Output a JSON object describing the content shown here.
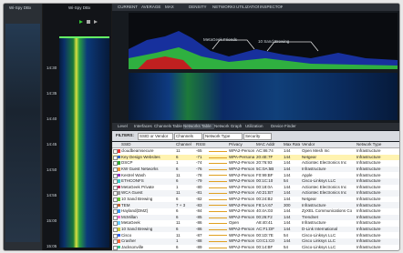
{
  "sidebar": {
    "title": "Wi-Spy DBx"
  },
  "waterfall_panel": {
    "title": "Wi-Spy DBx",
    "time_labels": [
      "14:30",
      "14:35",
      "14:40",
      "14:45",
      "14:50",
      "14:55",
      "15:00",
      "15:05"
    ]
  },
  "toolbar": {
    "items": [
      "CURRENT",
      "AVERAGE",
      "MAX",
      "DENSITY",
      "NETWORKS",
      "UTILIZATION",
      "INSPECTOR"
    ]
  },
  "spectrum": {
    "annotations": [
      "MetaGeek Friends",
      "10 Sand Brewing"
    ]
  },
  "tabs": [
    "Level",
    "Interfaces",
    "Channels Table",
    "Networks Table",
    "Network Graph",
    "Utilization",
    "Device Finder"
  ],
  "filters": {
    "label": "FILTERS:",
    "fields": [
      "SSID or Vendor",
      "Channels",
      "Network Type",
      "Security"
    ]
  },
  "table": {
    "columns": [
      "SSID",
      "Channel",
      "RSSI",
      "Privacy",
      "MAC Addr",
      "Max Rate",
      "Vendor",
      "Network Type"
    ],
    "rows": [
      [
        "cloudbeamsecure",
        "11",
        "-65",
        "WPA2-Personal",
        "AC:86:74",
        "144",
        "Open Mesh Inc",
        "Infrastructure"
      ],
      [
        "Key Design Websites",
        "6",
        "-71",
        "WPA-Personal",
        "20:4E:7F",
        "144",
        "Netgear",
        "Infrastructure"
      ],
      [
        "DSCP",
        "1",
        "-74",
        "WPA2-Personal",
        "20:76:93",
        "144",
        "Actiontec Electronics Inc",
        "Infrastructure"
      ],
      [
        "KW Guest Networks",
        "6",
        "-76",
        "WPA2-Personal",
        "5C:0A:5B",
        "144",
        "Infrastructure",
        "Infrastructure"
      ],
      [
        "Kestrel Wash",
        "11",
        "-78",
        "WPA2-Personal",
        "F0:99:BF",
        "144",
        "Apple",
        "Infrastructure"
      ],
      [
        "ETHCONFS",
        "6",
        "-79",
        "WPA2-Personal",
        "00:1C:10",
        "54",
        "Cisco-Linksys LLC",
        "Infrastructure"
      ],
      [
        "MetaGeek Private",
        "1",
        "-80",
        "WPA2-Personal",
        "00:18:0A",
        "144",
        "Actiontec Electronics Inc",
        "Infrastructure"
      ],
      [
        "WCA Guest",
        "11",
        "-81",
        "WPA2-Personal",
        "A0:21:B7",
        "144",
        "Actiontec Electronics Inc",
        "Infrastructure"
      ],
      [
        "10 Sand Brewing",
        "6",
        "-82",
        "WPA2-Personal",
        "00:24:B2",
        "144",
        "Netgear",
        "Infrastructure"
      ],
      [
        "TEM",
        "7 + 3",
        "-83",
        "WPA2-Personal",
        "F8:1A:67",
        "300",
        "Infrastructure",
        "Infrastructure"
      ],
      [
        "Hayland(DMZ)",
        "6",
        "-84",
        "WPA2-Personal",
        "40:4A:03",
        "144",
        "ZyXEL Communications Co",
        "Infrastructure"
      ],
      [
        "McMillan",
        "6",
        "-85",
        "WPA2-Personal",
        "00:26:F2",
        "144",
        "Trendnet",
        "Infrastructure"
      ],
      [
        "MetaGeek",
        "11",
        "-86",
        "Open",
        "A8:40:41",
        "144",
        "Infrastructure",
        "Infrastructure"
      ],
      [
        "10 Sand Brewing",
        "6",
        "-86",
        "WPA2-Personal",
        "AC:F1:DF",
        "144",
        "D-Link International",
        "Infrastructure"
      ],
      [
        "Cisco",
        "11",
        "-87",
        "WPA2-Personal",
        "00:1D:7E",
        "54",
        "Cisco-Linksys LLC",
        "Infrastructure"
      ],
      [
        "Crasher",
        "1",
        "-88",
        "WPA2-Personal",
        "C0:C1:C0",
        "144",
        "Cisco Linksys LLC",
        "Infrastructure"
      ],
      [
        "Jacksonville",
        "6",
        "-89",
        "WPA2-Personal",
        "00:14:BF",
        "54",
        "Cisco-Linksys LLC",
        "Infrastructure"
      ]
    ]
  }
}
